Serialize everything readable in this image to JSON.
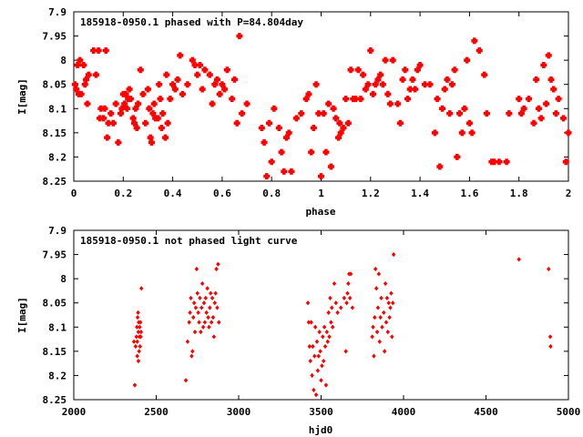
{
  "chart_data": [
    {
      "type": "scatter",
      "title": "185918-0950.1 phased with P=84.804day",
      "xlabel": "phase",
      "ylabel": "I[mag]",
      "xlim": [
        0,
        2
      ],
      "ylim": [
        8.25,
        7.9
      ],
      "y_inverted": true,
      "xticks": [
        "0",
        "0.2",
        "0.4",
        "0.6",
        "0.8",
        "1",
        "1.2",
        "1.4",
        "1.6",
        "1.8",
        "2"
      ],
      "xtick_values": [
        0,
        0.2,
        0.4,
        0.6,
        0.8,
        1,
        1.2,
        1.4,
        1.6,
        1.8,
        2
      ],
      "yticks": [
        "7.9",
        "7.95",
        "8",
        "8.05",
        "8.1",
        "8.15",
        "8.2",
        "8.25"
      ],
      "ytick_values": [
        7.9,
        7.95,
        8,
        8.05,
        8.1,
        8.15,
        8.2,
        8.25
      ],
      "marker_color": "#ff0000",
      "grid": false,
      "points": [
        [
          0.005,
          8.05
        ],
        [
          0.01,
          8.06
        ],
        [
          0.015,
          8.01
        ],
        [
          0.02,
          8.07
        ],
        [
          0.025,
          8.0
        ],
        [
          0.03,
          8.07
        ],
        [
          0.04,
          8.01
        ],
        [
          0.045,
          8.05
        ],
        [
          0.05,
          8.04
        ],
        [
          0.055,
          8.09
        ],
        [
          0.06,
          8.03
        ],
        [
          0.08,
          7.98
        ],
        [
          0.09,
          8.03
        ],
        [
          0.1,
          7.98
        ],
        [
          0.105,
          8.12
        ],
        [
          0.11,
          8.1
        ],
        [
          0.12,
          8.12
        ],
        [
          0.125,
          8.1
        ],
        [
          0.13,
          7.98
        ],
        [
          0.135,
          8.16
        ],
        [
          0.14,
          8.13
        ],
        [
          0.15,
          8.11
        ],
        [
          0.16,
          8.13
        ],
        [
          0.17,
          8.09
        ],
        [
          0.18,
          8.17
        ],
        [
          0.19,
          8.11
        ],
        [
          0.195,
          8.1
        ],
        [
          0.2,
          8.07
        ],
        [
          0.205,
          8.09
        ],
        [
          0.21,
          8.07
        ],
        [
          0.215,
          8.1
        ],
        [
          0.22,
          8.08
        ],
        [
          0.225,
          8.06
        ],
        [
          0.23,
          8.08
        ],
        [
          0.24,
          8.12
        ],
        [
          0.245,
          8.13
        ],
        [
          0.25,
          8.1
        ],
        [
          0.255,
          8.14
        ],
        [
          0.26,
          8.09
        ],
        [
          0.27,
          8.02
        ],
        [
          0.28,
          8.07
        ],
        [
          0.29,
          8.13
        ],
        [
          0.3,
          8.06
        ],
        [
          0.305,
          8.1
        ],
        [
          0.31,
          8.16
        ],
        [
          0.315,
          8.17
        ],
        [
          0.32,
          8.11
        ],
        [
          0.325,
          8.09
        ],
        [
          0.33,
          8.12
        ],
        [
          0.34,
          8.12
        ],
        [
          0.345,
          8.05
        ],
        [
          0.35,
          8.08
        ],
        [
          0.355,
          8.14
        ],
        [
          0.36,
          8.11
        ],
        [
          0.37,
          8.16
        ],
        [
          0.375,
          8.03
        ],
        [
          0.38,
          8.13
        ],
        [
          0.39,
          8.08
        ],
        [
          0.4,
          8.05
        ],
        [
          0.41,
          8.06
        ],
        [
          0.42,
          8.04
        ],
        [
          0.43,
          7.99
        ],
        [
          0.44,
          8.07
        ],
        [
          0.46,
          8.05
        ],
        [
          0.48,
          8.0
        ],
        [
          0.49,
          8.01
        ],
        [
          0.5,
          8.03
        ],
        [
          0.51,
          8.01
        ],
        [
          0.52,
          8.06
        ],
        [
          0.53,
          8.02
        ],
        [
          0.55,
          8.03
        ],
        [
          0.56,
          8.09
        ],
        [
          0.57,
          8.05
        ],
        [
          0.58,
          8.04
        ],
        [
          0.59,
          8.07
        ],
        [
          0.6,
          8.05
        ],
        [
          0.61,
          8.06
        ],
        [
          0.62,
          8.02
        ],
        [
          0.64,
          8.08
        ],
        [
          0.65,
          8.04
        ],
        [
          0.66,
          8.13
        ],
        [
          0.67,
          7.95
        ],
        [
          0.68,
          8.11
        ],
        [
          0.7,
          8.09
        ],
        [
          0.76,
          8.14
        ],
        [
          0.77,
          8.17
        ],
        [
          0.78,
          8.24
        ],
        [
          0.79,
          8.13
        ],
        [
          0.8,
          8.21
        ],
        [
          0.81,
          8.1
        ],
        [
          0.83,
          8.14
        ],
        [
          0.84,
          8.19
        ],
        [
          0.85,
          8.23
        ],
        [
          0.86,
          8.16
        ],
        [
          0.87,
          8.15
        ],
        [
          0.88,
          8.23
        ],
        [
          0.9,
          8.12
        ],
        [
          0.92,
          8.11
        ],
        [
          0.94,
          8.08
        ],
        [
          0.95,
          8.07
        ],
        [
          0.96,
          8.19
        ],
        [
          0.97,
          8.14
        ],
        [
          0.98,
          8.05
        ],
        [
          0.99,
          8.11
        ],
        [
          1.0,
          8.24
        ],
        [
          1.01,
          8.11
        ],
        [
          1.02,
          8.19
        ],
        [
          1.03,
          8.09
        ],
        [
          1.04,
          8.22
        ],
        [
          1.05,
          8.1
        ],
        [
          1.06,
          8.12
        ],
        [
          1.07,
          8.16
        ],
        [
          1.075,
          8.13
        ],
        [
          1.08,
          8.15
        ],
        [
          1.09,
          8.14
        ],
        [
          1.1,
          8.08
        ],
        [
          1.11,
          8.13
        ],
        [
          1.12,
          8.02
        ],
        [
          1.13,
          8.08
        ],
        [
          1.14,
          8.08
        ],
        [
          1.15,
          8.02
        ],
        [
          1.16,
          8.08
        ],
        [
          1.17,
          8.03
        ],
        [
          1.18,
          8.06
        ],
        [
          1.19,
          8.05
        ],
        [
          1.2,
          7.98
        ],
        [
          1.21,
          8.07
        ],
        [
          1.22,
          8.05
        ],
        [
          1.23,
          8.04
        ],
        [
          1.24,
          8.03
        ],
        [
          1.25,
          8.05
        ],
        [
          1.26,
          8.0
        ],
        [
          1.27,
          8.07
        ],
        [
          1.28,
          8.09
        ],
        [
          1.29,
          8.0
        ],
        [
          1.31,
          8.09
        ],
        [
          1.32,
          8.13
        ],
        [
          1.33,
          8.04
        ],
        [
          1.34,
          8.02
        ],
        [
          1.35,
          8.08
        ],
        [
          1.36,
          8.06
        ],
        [
          1.37,
          8.04
        ],
        [
          1.38,
          8.06
        ],
        [
          1.39,
          8.02
        ],
        [
          1.4,
          8.01
        ],
        [
          1.42,
          8.05
        ],
        [
          1.44,
          8.05
        ],
        [
          1.46,
          8.15
        ],
        [
          1.47,
          8.08
        ],
        [
          1.48,
          8.22
        ],
        [
          1.49,
          8.1
        ],
        [
          1.5,
          8.06
        ],
        [
          1.51,
          8.04
        ],
        [
          1.52,
          8.11
        ],
        [
          1.53,
          8.05
        ],
        [
          1.54,
          8.02
        ],
        [
          1.55,
          8.2
        ],
        [
          1.56,
          8.11
        ],
        [
          1.57,
          8.15
        ],
        [
          1.58,
          8.1
        ],
        [
          1.59,
          8.0
        ],
        [
          1.6,
          8.13
        ],
        [
          1.61,
          8.15
        ],
        [
          1.62,
          7.96
        ],
        [
          1.64,
          7.98
        ],
        [
          1.66,
          8.03
        ],
        [
          1.67,
          8.11
        ],
        [
          1.69,
          8.21
        ],
        [
          1.7,
          8.21
        ],
        [
          1.72,
          8.21
        ],
        [
          1.75,
          8.21
        ],
        [
          1.76,
          8.11
        ],
        [
          1.8,
          8.08
        ],
        [
          1.81,
          8.11
        ],
        [
          1.82,
          8.1
        ],
        [
          1.84,
          8.08
        ],
        [
          1.86,
          8.13
        ],
        [
          1.87,
          8.04
        ],
        [
          1.88,
          8.1
        ],
        [
          1.89,
          8.12
        ],
        [
          1.9,
          8.01
        ],
        [
          1.91,
          8.09
        ],
        [
          1.92,
          7.99
        ],
        [
          1.93,
          8.04
        ],
        [
          1.94,
          8.06
        ],
        [
          1.95,
          8.11
        ],
        [
          1.96,
          8.08
        ],
        [
          1.98,
          8.12
        ],
        [
          1.99,
          8.21
        ],
        [
          2.0,
          8.15
        ]
      ]
    },
    {
      "type": "scatter",
      "title": "185918-0950.1 not phased light curve",
      "xlabel": "hjd0",
      "ylabel": "I[mag]",
      "xlim": [
        2000,
        5000
      ],
      "ylim": [
        8.25,
        7.9
      ],
      "y_inverted": true,
      "xticks": [
        "2000",
        "2500",
        "3000",
        "3500",
        "4000",
        "4500",
        "5000"
      ],
      "xtick_values": [
        2000,
        2500,
        3000,
        3500,
        4000,
        4500,
        5000
      ],
      "yticks": [
        "7.9",
        "7.95",
        "8",
        "8.05",
        "8.1",
        "8.15",
        "8.2",
        "8.25"
      ],
      "ytick_values": [
        7.9,
        7.95,
        8,
        8.05,
        8.1,
        8.15,
        8.2,
        8.25
      ],
      "marker_color": "#ff0000",
      "grid": false,
      "points": [
        [
          2365,
          8.13
        ],
        [
          2370,
          8.22
        ],
        [
          2375,
          8.14
        ],
        [
          2380,
          8.12
        ],
        [
          2383,
          8.1
        ],
        [
          2385,
          8.13
        ],
        [
          2387,
          8.08
        ],
        [
          2390,
          8.07
        ],
        [
          2392,
          8.11
        ],
        [
          2394,
          8.09
        ],
        [
          2396,
          8.15
        ],
        [
          2398,
          8.12
        ],
        [
          2400,
          8.1
        ],
        [
          2402,
          8.14
        ],
        [
          2404,
          8.09
        ],
        [
          2406,
          8.12
        ],
        [
          2408,
          8.11
        ],
        [
          2410,
          8.02
        ],
        [
          2385,
          8.16
        ],
        [
          2392,
          8.17
        ],
        [
          2680,
          8.21
        ],
        [
          2690,
          8.13
        ],
        [
          2700,
          8.09
        ],
        [
          2705,
          8.07
        ],
        [
          2710,
          8.04
        ],
        [
          2715,
          8.16
        ],
        [
          2720,
          8.15
        ],
        [
          2725,
          8.08
        ],
        [
          2730,
          8.05
        ],
        [
          2735,
          8.11
        ],
        [
          2740,
          8.06
        ],
        [
          2745,
          7.98
        ],
        [
          2750,
          8.03
        ],
        [
          2755,
          8.07
        ],
        [
          2760,
          8.09
        ],
        [
          2765,
          8.04
        ],
        [
          2770,
          8.11
        ],
        [
          2775,
          8.06
        ],
        [
          2780,
          8.01
        ],
        [
          2785,
          8.1
        ],
        [
          2790,
          8.05
        ],
        [
          2795,
          8.09
        ],
        [
          2800,
          8.04
        ],
        [
          2805,
          8.07
        ],
        [
          2810,
          8.02
        ],
        [
          2815,
          8.08
        ],
        [
          2820,
          8.1
        ],
        [
          2825,
          8.06
        ],
        [
          2830,
          8.03
        ],
        [
          2835,
          8.09
        ],
        [
          2840,
          8.04
        ],
        [
          2845,
          8.08
        ],
        [
          2850,
          8.12
        ],
        [
          2855,
          8.05
        ],
        [
          2860,
          8.03
        ],
        [
          2865,
          7.98
        ],
        [
          2870,
          8.06
        ],
        [
          2875,
          7.97
        ],
        [
          2880,
          8.09
        ],
        [
          3420,
          8.05
        ],
        [
          3425,
          8.09
        ],
        [
          3430,
          8.14
        ],
        [
          3435,
          8.17
        ],
        [
          3440,
          8.09
        ],
        [
          3445,
          8.2
        ],
        [
          3450,
          8.14
        ],
        [
          3455,
          8.23
        ],
        [
          3460,
          8.16
        ],
        [
          3465,
          8.1
        ],
        [
          3470,
          8.24
        ],
        [
          3475,
          8.13
        ],
        [
          3480,
          8.19
        ],
        [
          3485,
          8.16
        ],
        [
          3490,
          8.11
        ],
        [
          3495,
          8.15
        ],
        [
          3500,
          8.21
        ],
        [
          3505,
          8.18
        ],
        [
          3510,
          8.12
        ],
        [
          3515,
          8.17
        ],
        [
          3520,
          8.1
        ],
        [
          3525,
          8.14
        ],
        [
          3530,
          8.22
        ],
        [
          3535,
          8.11
        ],
        [
          3540,
          8.13
        ],
        [
          3545,
          8.07
        ],
        [
          3550,
          8.12
        ],
        [
          3555,
          8.04
        ],
        [
          3560,
          8.09
        ],
        [
          3565,
          8.06
        ],
        [
          3570,
          8.1
        ],
        [
          3580,
          8.01
        ],
        [
          3590,
          8.05
        ],
        [
          3600,
          8.07
        ],
        [
          3620,
          8.06
        ],
        [
          3640,
          8.04
        ],
        [
          3650,
          8.15
        ],
        [
          3655,
          8.05
        ],
        [
          3660,
          8.03
        ],
        [
          3665,
          8.01
        ],
        [
          3670,
          7.99
        ],
        [
          3675,
          8.04
        ],
        [
          3680,
          7.99
        ],
        [
          3690,
          8.06
        ],
        [
          3810,
          8.12
        ],
        [
          3815,
          8.1
        ],
        [
          3820,
          8.16
        ],
        [
          3825,
          8.08
        ],
        [
          3830,
          7.98
        ],
        [
          3835,
          8.02
        ],
        [
          3840,
          8.11
        ],
        [
          3845,
          8.06
        ],
        [
          3850,
          7.99
        ],
        [
          3855,
          8.13
        ],
        [
          3860,
          8.08
        ],
        [
          3865,
          8.04
        ],
        [
          3870,
          8.1
        ],
        [
          3880,
          8.07
        ],
        [
          3885,
          8.15
        ],
        [
          3890,
          8.01
        ],
        [
          3895,
          8.09
        ],
        [
          3900,
          8.04
        ],
        [
          3905,
          8.11
        ],
        [
          3910,
          8.05
        ],
        [
          3915,
          8.08
        ],
        [
          3920,
          8.06
        ],
        [
          3925,
          8.03
        ],
        [
          3930,
          8.12
        ],
        [
          3935,
          8.05
        ],
        [
          3940,
          7.95
        ],
        [
          4700,
          7.96
        ],
        [
          4880,
          7.98
        ],
        [
          4890,
          8.12
        ],
        [
          4892,
          8.14
        ]
      ]
    }
  ]
}
